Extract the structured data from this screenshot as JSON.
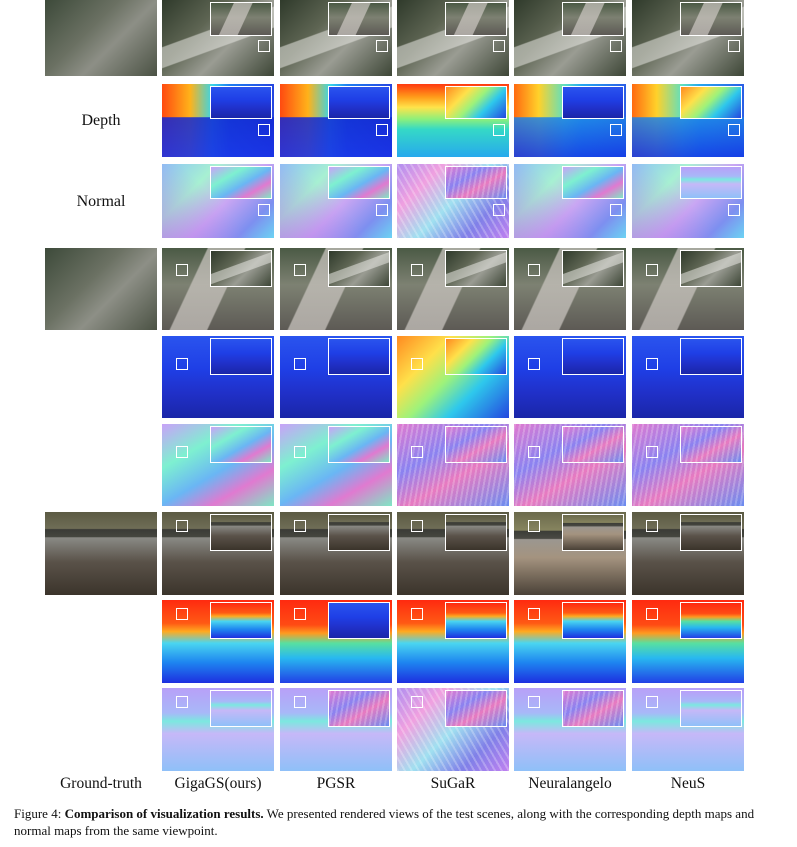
{
  "row_labels": {
    "depth": "Depth",
    "normal": "Normal"
  },
  "column_labels": [
    "Ground-truth",
    "GigaGS(ours)",
    "PGSR",
    "SuGaR",
    "Neuralangelo",
    "NeuS"
  ],
  "caption": {
    "prefix": "Figure 4: ",
    "bold": "Comparison of visualization results.",
    "rest": " We presented rendered views of the test scenes, along with the corresponding depth maps and normal maps from the same viewpoint."
  }
}
